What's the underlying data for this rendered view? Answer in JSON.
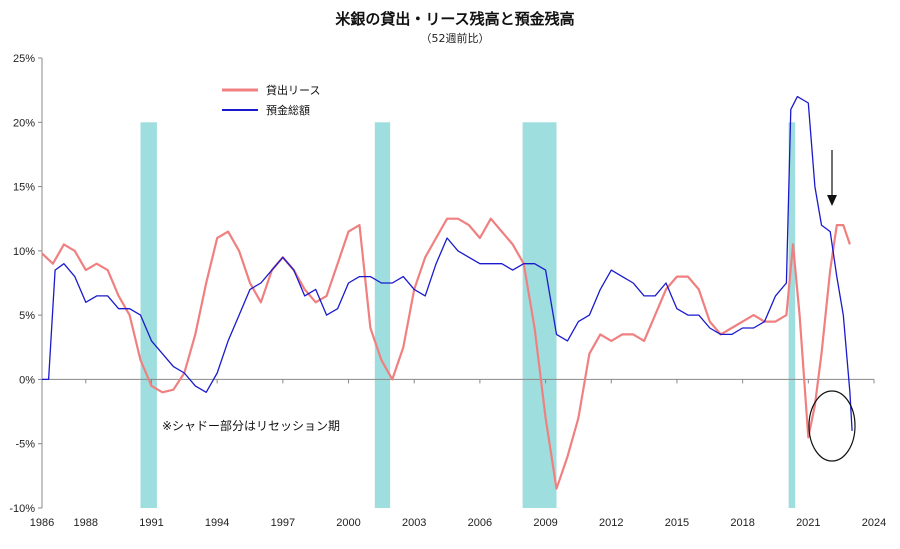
{
  "chart_data": {
    "type": "line",
    "title": "米銀の貸出・リース残高と預金残高",
    "subtitle": "（52週前比）",
    "ylim": [
      -10,
      25
    ],
    "xlim": [
      1986,
      2024
    ],
    "y_ticks": [
      -10,
      -5,
      0,
      5,
      10,
      15,
      20,
      25
    ],
    "y_tick_labels": [
      "-10%",
      "-5%",
      "0%",
      "5%",
      "10%",
      "15%",
      "20%",
      "25%"
    ],
    "x_ticks": [
      1986,
      1988,
      1991,
      1994,
      1997,
      2000,
      2003,
      2006,
      2009,
      2012,
      2015,
      2018,
      2021,
      2024
    ],
    "x_tick_labels": [
      "1986",
      "1988",
      "1991",
      "1994",
      "1997",
      "2000",
      "2003",
      "2006",
      "2009",
      "2012",
      "2015",
      "2018",
      "2021",
      "2024"
    ],
    "legend_position": "top-left",
    "recession_note": "※シャドー部分はリセッション期",
    "recessions": [
      [
        1990.5,
        1991.25
      ],
      [
        2001.2,
        2001.9
      ],
      [
        2007.95,
        2009.5
      ],
      [
        2020.1,
        2020.4
      ]
    ],
    "colors": {
      "loans": "#f08080",
      "deposits": "#1a1acc",
      "recession": "#9fdede",
      "axis": "#888888"
    },
    "series": [
      {
        "name": "貸出リース",
        "color": "#f08080",
        "x": [
          1986.0,
          1986.5,
          1987.0,
          1987.5,
          1988.0,
          1988.5,
          1989.0,
          1989.5,
          1990.0,
          1990.5,
          1991.0,
          1991.5,
          1992.0,
          1992.5,
          1993.0,
          1993.5,
          1994.0,
          1994.5,
          1995.0,
          1995.5,
          1996.0,
          1996.5,
          1997.0,
          1997.5,
          1998.0,
          1998.5,
          1999.0,
          1999.5,
          2000.0,
          2000.5,
          2001.0,
          2001.5,
          2002.0,
          2002.5,
          2003.0,
          2003.5,
          2004.0,
          2004.5,
          2005.0,
          2005.5,
          2006.0,
          2006.5,
          2007.0,
          2007.5,
          2008.0,
          2008.5,
          2009.0,
          2009.5,
          2010.0,
          2010.5,
          2011.0,
          2011.5,
          2012.0,
          2012.5,
          2013.0,
          2013.5,
          2014.0,
          2014.5,
          2015.0,
          2015.5,
          2016.0,
          2016.5,
          2017.0,
          2017.5,
          2018.0,
          2018.5,
          2019.0,
          2019.5,
          2020.0,
          2020.3,
          2020.6,
          2021.0,
          2021.3,
          2021.6,
          2022.0,
          2022.3,
          2022.6,
          2022.9
        ],
        "values": [
          9.8,
          9.0,
          10.5,
          10.0,
          8.5,
          9.0,
          8.5,
          6.5,
          5.0,
          1.5,
          -0.5,
          -1.0,
          -0.8,
          0.5,
          3.5,
          7.5,
          11.0,
          11.5,
          10.0,
          7.5,
          6.0,
          8.5,
          9.5,
          8.5,
          7.0,
          6.0,
          6.5,
          9.0,
          11.5,
          12.0,
          4.0,
          1.5,
          0.0,
          2.5,
          7.0,
          9.5,
          11.0,
          12.5,
          12.5,
          12.0,
          11.0,
          12.5,
          11.5,
          10.5,
          9.0,
          4.0,
          -3.0,
          -8.5,
          -6.0,
          -3.0,
          2.0,
          3.5,
          3.0,
          3.5,
          3.5,
          3.0,
          5.0,
          7.0,
          8.0,
          8.0,
          7.0,
          4.5,
          3.5,
          4.0,
          4.5,
          5.0,
          4.5,
          4.5,
          5.0,
          10.5,
          5.0,
          -4.5,
          -2.0,
          2.0,
          8.5,
          12.0,
          12.0,
          10.5
        ]
      },
      {
        "name": "預金総額",
        "color": "#1a1acc",
        "x": [
          1986.0,
          1986.3,
          1986.6,
          1987.0,
          1987.5,
          1988.0,
          1988.5,
          1989.0,
          1989.5,
          1990.0,
          1990.5,
          1991.0,
          1991.5,
          1992.0,
          1992.5,
          1993.0,
          1993.5,
          1994.0,
          1994.5,
          1995.0,
          1995.5,
          1996.0,
          1996.5,
          1997.0,
          1997.5,
          1998.0,
          1998.5,
          1999.0,
          1999.5,
          2000.0,
          2000.5,
          2001.0,
          2001.5,
          2002.0,
          2002.5,
          2003.0,
          2003.5,
          2004.0,
          2004.5,
          2005.0,
          2005.5,
          2006.0,
          2006.5,
          2007.0,
          2007.5,
          2008.0,
          2008.5,
          2009.0,
          2009.5,
          2010.0,
          2010.5,
          2011.0,
          2011.5,
          2012.0,
          2012.5,
          2013.0,
          2013.5,
          2014.0,
          2014.5,
          2015.0,
          2015.5,
          2016.0,
          2016.5,
          2017.0,
          2017.5,
          2018.0,
          2018.5,
          2019.0,
          2019.5,
          2020.0,
          2020.2,
          2020.5,
          2021.0,
          2021.3,
          2021.6,
          2022.0,
          2022.3,
          2022.6,
          2022.9,
          2023.0
        ],
        "values": [
          0.0,
          0.0,
          8.5,
          9.0,
          8.0,
          6.0,
          6.5,
          6.5,
          5.5,
          5.5,
          5.0,
          3.0,
          2.0,
          1.0,
          0.5,
          -0.5,
          -1.0,
          0.5,
          3.0,
          5.0,
          7.0,
          7.5,
          8.5,
          9.5,
          8.5,
          6.5,
          7.0,
          5.0,
          5.5,
          7.5,
          8.0,
          8.0,
          7.5,
          7.5,
          8.0,
          7.0,
          6.5,
          9.0,
          11.0,
          10.0,
          9.5,
          9.0,
          9.0,
          9.0,
          8.5,
          9.0,
          9.0,
          8.5,
          3.5,
          3.0,
          4.5,
          5.0,
          7.0,
          8.5,
          8.0,
          7.5,
          6.5,
          6.5,
          7.5,
          5.5,
          5.0,
          5.0,
          4.0,
          3.5,
          3.5,
          4.0,
          4.0,
          4.5,
          6.5,
          7.5,
          21.0,
          22.0,
          21.5,
          15.0,
          12.0,
          11.5,
          8.0,
          5.0,
          -1.0,
          -4.0
        ]
      }
    ]
  }
}
